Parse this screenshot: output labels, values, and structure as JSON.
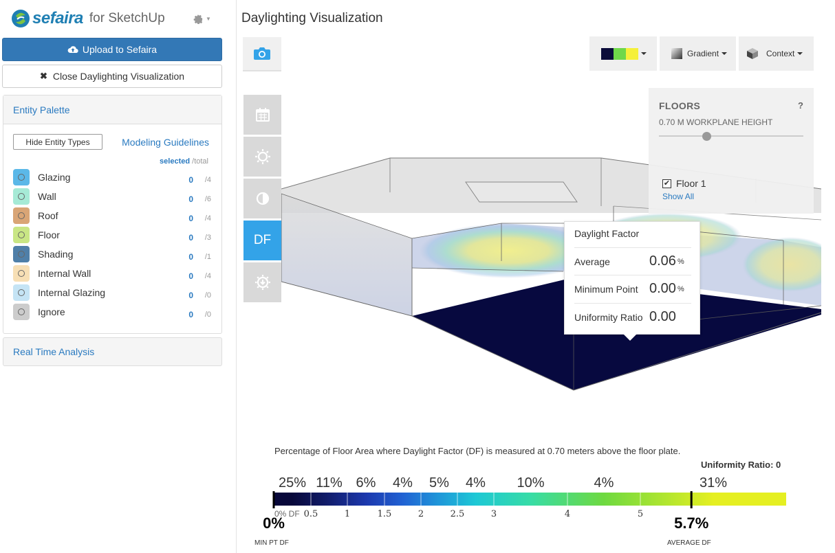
{
  "app": {
    "brand_name": "sefaira",
    "brand_suffix": "for SketchUp",
    "settings_icon": "gear-icon"
  },
  "left_panel": {
    "upload_button": "Upload to Sefaira",
    "close_button": "Close Daylighting Visualization",
    "entity_palette": {
      "title": "Entity Palette",
      "hide_button": "Hide Entity Types",
      "guidelines_link": "Modeling Guidelines",
      "selected_label": "selected",
      "total_label": "/total",
      "items": [
        {
          "label": "Glazing",
          "selected": "0",
          "total": "/4",
          "color": "#5bb8e8"
        },
        {
          "label": "Wall",
          "selected": "0",
          "total": "/6",
          "color": "#a6ead6"
        },
        {
          "label": "Roof",
          "selected": "0",
          "total": "/4",
          "color": "#d9a576"
        },
        {
          "label": "Floor",
          "selected": "0",
          "total": "/3",
          "color": "#c9e685"
        },
        {
          "label": "Shading",
          "selected": "0",
          "total": "/1",
          "color": "#4f7fa8"
        },
        {
          "label": "Internal Wall",
          "selected": "0",
          "total": "/4",
          "color": "#f7dfb5"
        },
        {
          "label": "Internal Glazing",
          "selected": "0",
          "total": "/0",
          "color": "#c5e4f5"
        },
        {
          "label": "Ignore",
          "selected": "0",
          "total": "/0",
          "color": "#cccccc"
        }
      ]
    },
    "real_time_analysis": "Real Time Analysis"
  },
  "main": {
    "title": "Daylighting Visualization",
    "toolbar": {
      "camera_icon": "camera-icon",
      "palette_colors": [
        "#0b0c3a",
        "#6fd84a",
        "#f5f03a"
      ],
      "gradient_label": "Gradient",
      "context_label": "Context"
    },
    "side_tools": [
      {
        "name": "calendar-icon"
      },
      {
        "name": "sun-icon"
      },
      {
        "name": "contrast-icon"
      },
      {
        "name": "df-button",
        "label": "DF"
      },
      {
        "name": "sun-download-icon"
      }
    ],
    "floors": {
      "title": "FLOORS",
      "help": "?",
      "workplane": "0.70 M WORKPLANE HEIGHT",
      "slider_value": 0.33,
      "floor_name": "Floor 1",
      "floor_checked": true,
      "show_all": "Show All"
    },
    "tooltip": {
      "title": "Daylight Factor",
      "rows": [
        {
          "label": "Average",
          "value": "0.06",
          "unit": "%"
        },
        {
          "label": "Minimum Point",
          "value": "0.00",
          "unit": "%"
        },
        {
          "label": "Uniformity Ratio",
          "value": "0.00",
          "unit": ""
        }
      ]
    }
  },
  "legend": {
    "description": "Percentage of Floor Area where Daylight Factor (DF) is measured at 0.70 meters above the floor plate.",
    "uniformity": "Uniformity Ratio: 0",
    "min_value": "0%",
    "min_caption": "MIN PT DF",
    "avg_value": "5.7%",
    "avg_caption": "AVERAGE DF",
    "zero_label": "0% DF"
  },
  "chart_data": {
    "type": "bar",
    "title": "",
    "xlabel": "DF",
    "ylabel": "",
    "bins": [
      {
        "from": 0,
        "to": 0.5,
        "pct": "25%",
        "color": "#08083a"
      },
      {
        "from": 0.5,
        "to": 1,
        "pct": "11%",
        "color": "#121e6e"
      },
      {
        "from": 1,
        "to": 1.5,
        "pct": "6%",
        "color": "#1c38ad"
      },
      {
        "from": 1.5,
        "to": 2,
        "pct": "4%",
        "color": "#2162d3"
      },
      {
        "from": 2,
        "to": 2.5,
        "pct": "5%",
        "color": "#1f97d9"
      },
      {
        "from": 2.5,
        "to": 3,
        "pct": "4%",
        "color": "#1ec8d5"
      },
      {
        "from": 3,
        "to": 4,
        "pct": "10%",
        "color": "#37dca6"
      },
      {
        "from": 4,
        "to": 5,
        "pct": "4%",
        "color": "#6ed940"
      },
      {
        "from": 5,
        "to": 7,
        "pct": "31%",
        "color": "#e5ef22"
      }
    ],
    "ticks": [
      "0.5",
      "1",
      "1.5",
      "2",
      "2.5",
      "3",
      "4",
      "5"
    ],
    "average_df": 5.7,
    "min_df": 0
  }
}
